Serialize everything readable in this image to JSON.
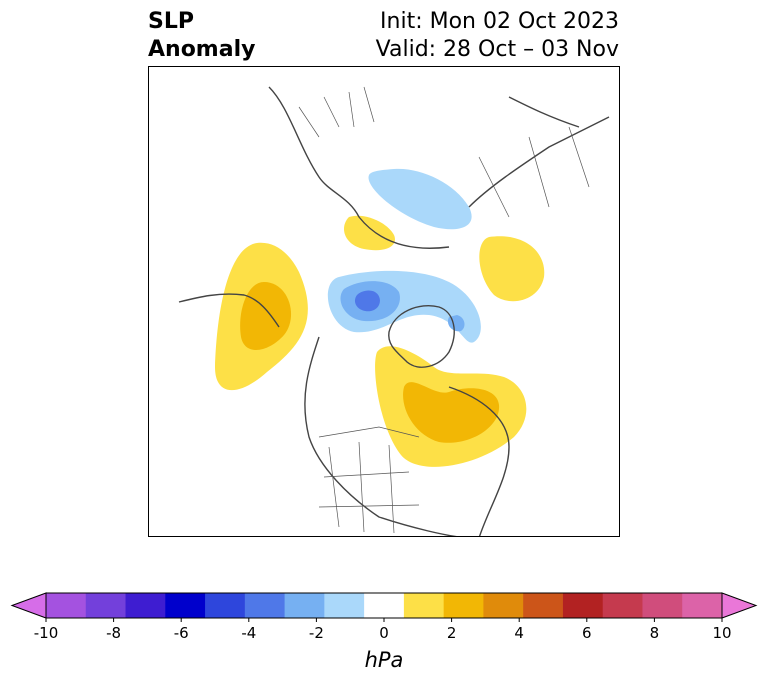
{
  "title": {
    "left_line1": "SLP",
    "left_line2": "Anomaly",
    "right_line1": "Init: Mon 02 Oct 2023",
    "right_line2": "Valid: 28 Oct – 03 Nov"
  },
  "colorbar": {
    "unit": "hPa",
    "ticks": [
      "-10",
      "-8",
      "-6",
      "-4",
      "-2",
      "0",
      "2",
      "4",
      "6",
      "8",
      "10"
    ],
    "colors": [
      "#d66de8",
      "#a452e0",
      "#7340db",
      "#3e1dd1",
      "#0000cc",
      "#2e46dc",
      "#4f78e8",
      "#76b0f2",
      "#aad8fa",
      "#ffffff",
      "#fde047",
      "#f2b705",
      "#e08b0b",
      "#cc5519",
      "#b22222",
      "#c53a4e",
      "#d04d7c",
      "#dc63a8",
      "#ea77d8"
    ]
  },
  "map": {
    "field": "SLP anomaly",
    "features": [
      {
        "name": "positive-anomaly-west-canada-coast",
        "value": "2 to 4 hPa"
      },
      {
        "name": "negative-anomaly-arctic",
        "value": "-2 to -6 hPa"
      },
      {
        "name": "positive-anomaly-eastern-canada",
        "value": "2 to 4 hPa"
      },
      {
        "name": "negative-anomaly-scandinavia-russia",
        "value": "-2 hPa"
      },
      {
        "name": "positive-anomaly-central-asia",
        "value": "2 hPa"
      }
    ]
  }
}
